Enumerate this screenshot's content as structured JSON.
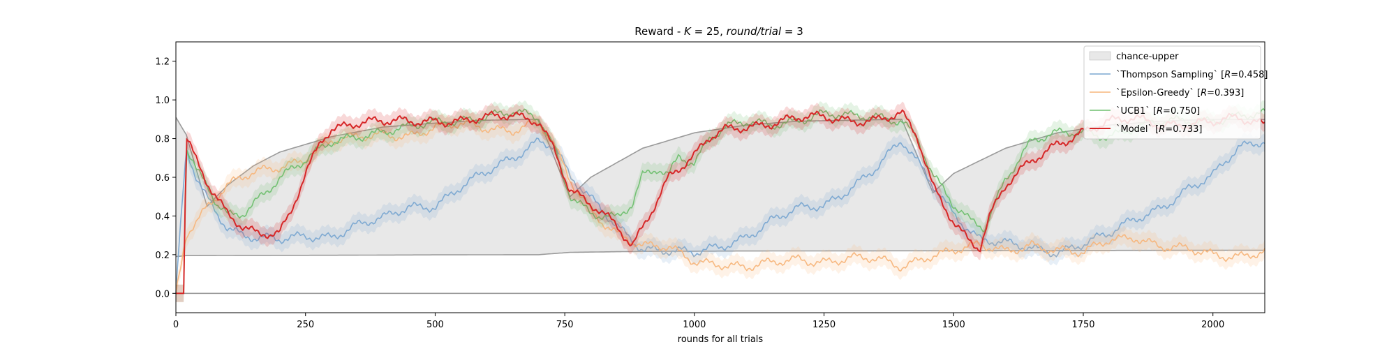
{
  "chart_data": {
    "type": "line",
    "title_parts": [
      "Reward - ",
      "K",
      " = 25, ",
      "round/trial",
      " = 3"
    ],
    "xlabel": "rounds for all trials",
    "ylabel": "",
    "xlim": [
      0,
      2100
    ],
    "ylim": [
      -0.1,
      1.3
    ],
    "x_ticks": [
      0,
      250,
      500,
      750,
      1000,
      1250,
      1500,
      1750,
      2000
    ],
    "y_ticks": [
      "0.0",
      "0.2",
      "0.4",
      "0.6",
      "0.8",
      "1.0",
      "1.2"
    ],
    "legend_position": "top-right",
    "chance_band": {
      "name": "chance-upper",
      "color": "#e8e8e8",
      "lower": {
        "x": [
          0,
          20,
          100,
          300,
          500,
          700,
          760,
          900,
          1100,
          1400,
          1460,
          1600,
          1800,
          2100
        ],
        "y": [
          0.19,
          0.195,
          0.196,
          0.197,
          0.199,
          0.2,
          0.212,
          0.217,
          0.219,
          0.22,
          0.22,
          0.221,
          0.222,
          0.223
        ]
      },
      "upper": {
        "x": [
          0,
          20,
          60,
          100,
          150,
          200,
          300,
          400,
          500,
          600,
          700,
          760,
          800,
          900,
          1000,
          1100,
          1200,
          1300,
          1400,
          1460,
          1500,
          1600,
          1700,
          1800,
          1900,
          2000,
          2100
        ],
        "y": [
          0.91,
          0.82,
          0.45,
          0.56,
          0.66,
          0.73,
          0.81,
          0.86,
          0.88,
          0.895,
          0.9,
          0.5,
          0.6,
          0.75,
          0.83,
          0.87,
          0.89,
          0.895,
          0.9,
          0.52,
          0.62,
          0.75,
          0.83,
          0.87,
          0.89,
          0.9,
          0.9
        ]
      }
    },
    "series": [
      {
        "name": "`Thompson Sampling` [",
        "r_value": "=0.458]",
        "color": "#7aa7d1",
        "x": [
          0,
          20,
          40,
          60,
          80,
          100,
          130,
          160,
          200,
          250,
          300,
          350,
          400,
          450,
          500,
          550,
          600,
          650,
          700,
          730,
          760,
          800,
          850,
          900,
          950,
          1000,
          1050,
          1100,
          1150,
          1200,
          1250,
          1300,
          1350,
          1400,
          1450,
          1500,
          1550,
          1600,
          1650,
          1700,
          1750,
          1800,
          1850,
          1900,
          1950,
          2000,
          2050,
          2100
        ],
        "y": [
          0.0,
          0.74,
          0.6,
          0.5,
          0.42,
          0.35,
          0.3,
          0.28,
          0.27,
          0.3,
          0.3,
          0.35,
          0.38,
          0.45,
          0.46,
          0.55,
          0.62,
          0.7,
          0.8,
          0.77,
          0.6,
          0.48,
          0.35,
          0.24,
          0.22,
          0.2,
          0.24,
          0.3,
          0.38,
          0.43,
          0.45,
          0.55,
          0.65,
          0.78,
          0.6,
          0.42,
          0.28,
          0.25,
          0.23,
          0.22,
          0.26,
          0.3,
          0.38,
          0.45,
          0.54,
          0.6,
          0.75,
          0.8
        ]
      },
      {
        "name": "`Epsilon-Greedy` [",
        "r_value": "=0.393]",
        "color": "#f7b57b",
        "x": [
          0,
          20,
          40,
          60,
          80,
          100,
          150,
          200,
          250,
          300,
          350,
          400,
          450,
          500,
          550,
          600,
          650,
          700,
          730,
          760,
          800,
          850,
          900,
          950,
          1000,
          1050,
          1100,
          1150,
          1200,
          1250,
          1300,
          1350,
          1400,
          1450,
          1500,
          1550,
          1600,
          1650,
          1700,
          1750,
          1800,
          1850,
          1900,
          1950,
          2000,
          2050,
          2100
        ],
        "y": [
          0.0,
          0.32,
          0.38,
          0.45,
          0.5,
          0.55,
          0.62,
          0.66,
          0.7,
          0.78,
          0.8,
          0.83,
          0.82,
          0.85,
          0.87,
          0.86,
          0.85,
          0.88,
          0.75,
          0.58,
          0.43,
          0.32,
          0.24,
          0.23,
          0.17,
          0.16,
          0.13,
          0.15,
          0.18,
          0.17,
          0.18,
          0.17,
          0.14,
          0.2,
          0.22,
          0.24,
          0.22,
          0.26,
          0.22,
          0.2,
          0.28,
          0.3,
          0.24,
          0.22,
          0.2,
          0.2,
          0.22
        ]
      },
      {
        "name": "`UCB1` [",
        "r_value": "=0.750]",
        "color": "#6fbf6f",
        "x": [
          0,
          15,
          20,
          40,
          60,
          80,
          100,
          130,
          160,
          200,
          250,
          300,
          350,
          400,
          450,
          500,
          550,
          600,
          650,
          700,
          730,
          760,
          800,
          850,
          880,
          900,
          930,
          950,
          970,
          1000,
          1030,
          1060,
          1100,
          1150,
          1200,
          1250,
          1300,
          1350,
          1400,
          1430,
          1460,
          1500,
          1530,
          1560,
          1600,
          1650,
          1700,
          1750,
          1800,
          1850,
          1900,
          1950,
          2000,
          2050,
          2100
        ],
        "y": [
          0.0,
          0.0,
          0.75,
          0.62,
          0.55,
          0.45,
          0.4,
          0.42,
          0.5,
          0.6,
          0.68,
          0.78,
          0.82,
          0.84,
          0.85,
          0.88,
          0.9,
          0.92,
          0.93,
          0.9,
          0.75,
          0.52,
          0.42,
          0.38,
          0.45,
          0.6,
          0.65,
          0.62,
          0.72,
          0.68,
          0.8,
          0.85,
          0.88,
          0.88,
          0.9,
          0.92,
          0.91,
          0.92,
          0.9,
          0.8,
          0.6,
          0.45,
          0.38,
          0.35,
          0.6,
          0.78,
          0.82,
          0.84,
          0.82,
          0.85,
          0.88,
          0.9,
          0.9,
          0.91,
          0.92
        ]
      },
      {
        "name": "`Model` [",
        "r_value": "=0.733]",
        "color": "#d62728",
        "x": [
          0,
          15,
          20,
          40,
          60,
          80,
          100,
          130,
          160,
          200,
          220,
          250,
          280,
          300,
          350,
          400,
          450,
          500,
          550,
          600,
          650,
          700,
          730,
          760,
          800,
          850,
          880,
          900,
          950,
          1000,
          1030,
          1060,
          1100,
          1150,
          1200,
          1250,
          1300,
          1350,
          1400,
          1430,
          1460,
          1500,
          1530,
          1550,
          1570,
          1600,
          1650,
          1700,
          1750,
          1800,
          1850,
          1900,
          1950,
          2000,
          2050,
          2100
        ],
        "y": [
          0.0,
          0.0,
          0.8,
          0.68,
          0.58,
          0.5,
          0.42,
          0.35,
          0.3,
          0.3,
          0.4,
          0.62,
          0.8,
          0.86,
          0.88,
          0.88,
          0.89,
          0.9,
          0.89,
          0.9,
          0.92,
          0.9,
          0.75,
          0.53,
          0.45,
          0.35,
          0.25,
          0.35,
          0.6,
          0.7,
          0.8,
          0.85,
          0.87,
          0.88,
          0.9,
          0.91,
          0.9,
          0.9,
          0.92,
          0.8,
          0.55,
          0.38,
          0.28,
          0.24,
          0.4,
          0.55,
          0.68,
          0.78,
          0.84,
          0.88,
          0.9,
          0.88,
          0.88,
          0.88,
          0.9,
          0.88
        ]
      }
    ]
  }
}
